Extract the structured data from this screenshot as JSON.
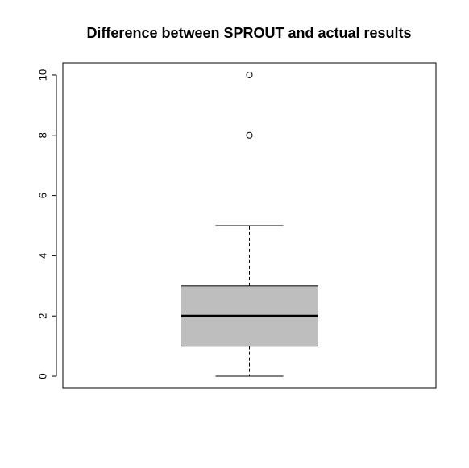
{
  "chart_data": {
    "type": "boxplot",
    "title": "Difference between SPROUT and actual results",
    "xlabel": "",
    "ylabel": "",
    "ylim": [
      -0.4,
      10.4
    ],
    "yticks": [
      0,
      2,
      4,
      6,
      8,
      10
    ],
    "box": {
      "min": 0,
      "q1": 1,
      "median": 2,
      "q3": 3,
      "max": 5,
      "outliers": [
        8,
        10
      ]
    },
    "colors": {
      "box_fill": "#bebebe",
      "stroke": "#000000"
    },
    "grid": false
  }
}
